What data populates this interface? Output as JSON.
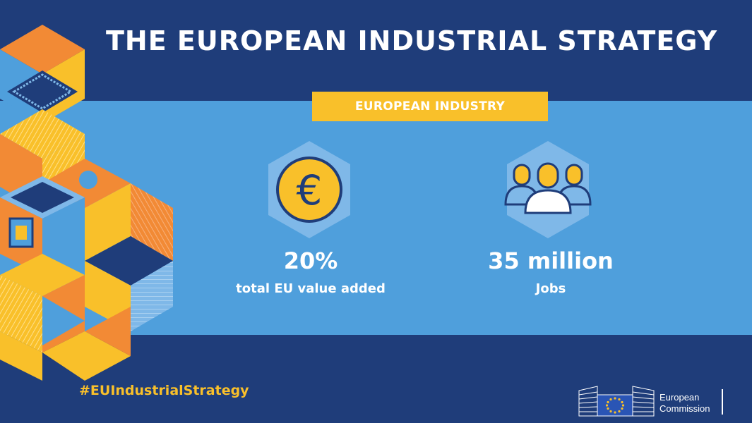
{
  "title": "THE EUROPEAN INDUSTRIAL STRATEGY",
  "section_label": "EUROPEAN INDUSTRY",
  "stats": [
    {
      "value": "20%",
      "label": "total EU value added",
      "icon": "euro-coin-icon"
    },
    {
      "value": "35 million",
      "label": "Jobs",
      "icon": "people-group-icon"
    }
  ],
  "hashtag": "#EUIndustrialStrategy",
  "logo": {
    "line1": "European",
    "line2": "Commission"
  },
  "colors": {
    "navy": "#1f3d7a",
    "sky_blue": "#4f9fdc",
    "light_blue": "#7fb8e8",
    "yellow": "#f9c02a",
    "orange": "#f28a35",
    "white": "#ffffff"
  }
}
